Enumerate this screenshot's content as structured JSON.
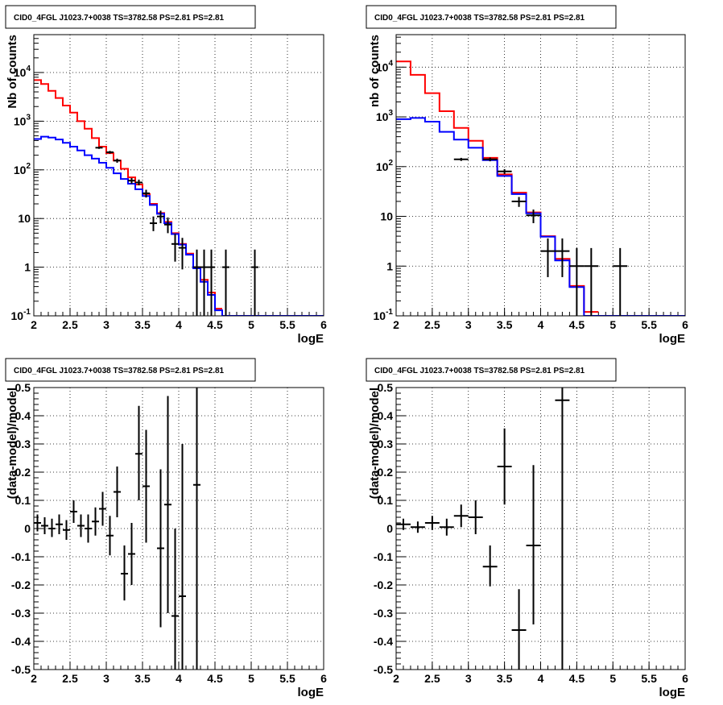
{
  "chart_data": [
    {
      "type": "line",
      "title": "CID0_4FGL J1023.7+0038 TS=3782.58 PS=2.81 PS=2.81",
      "xlabel": "logE",
      "ylabel": "Nb of counts",
      "xlim": [
        2,
        6
      ],
      "ylim": [
        0.1,
        60000
      ],
      "yscale": "log",
      "grid": true,
      "xticks": [
        "2",
        "2.5",
        "3",
        "3.5",
        "4",
        "4.5",
        "5",
        "5.5",
        "6"
      ],
      "yticks": [
        "10^-1",
        "1",
        "10",
        "10^2",
        "10^3",
        "10^4"
      ],
      "series": [
        {
          "role": "model-total",
          "color": "#ff0000",
          "edges": [
            2,
            2.1,
            2.2,
            2.3,
            2.4,
            2.5,
            2.6,
            2.7,
            2.8,
            2.9,
            3.0,
            3.1,
            3.2,
            3.3,
            3.4,
            3.5,
            3.6,
            3.7,
            3.8,
            3.9,
            4.0,
            4.1,
            4.2,
            4.3,
            4.4,
            4.5,
            4.6
          ],
          "values": [
            7000,
            5800,
            4200,
            3000,
            2100,
            1500,
            1000,
            700,
            450,
            300,
            220,
            155,
            105,
            70,
            50,
            32,
            20,
            13,
            8.5,
            5,
            3,
            1.9,
            1,
            0.55,
            0.3,
            0.14
          ]
        },
        {
          "role": "model-component",
          "color": "#0000ff",
          "edges": [
            2,
            2.1,
            2.2,
            2.3,
            2.4,
            2.5,
            2.6,
            2.7,
            2.8,
            2.9,
            3.0,
            3.1,
            3.2,
            3.3,
            3.4,
            3.5,
            3.6,
            3.7,
            3.8,
            3.9,
            4.0,
            4.1,
            4.2,
            4.3,
            4.4,
            4.5,
            4.6,
            6.0
          ],
          "values": [
            430,
            480,
            460,
            420,
            360,
            300,
            250,
            200,
            170,
            140,
            110,
            85,
            65,
            52,
            40,
            29,
            19,
            12.5,
            8,
            4.8,
            2.9,
            1.8,
            0.95,
            0.5,
            0.27,
            0.13,
            0.1
          ]
        },
        {
          "role": "data",
          "color": "#000000",
          "points": [
            {
              "x": 2.9,
              "y": 285,
              "xerr": 0.05,
              "ylo": 270,
              "yhi": 300
            },
            {
              "x": 3.05,
              "y": 230,
              "xerr": 0.05,
              "ylo": 215,
              "yhi": 245
            },
            {
              "x": 3.15,
              "y": 155,
              "xerr": 0.05,
              "ylo": 140,
              "yhi": 170
            },
            {
              "x": 3.35,
              "y": 60,
              "xerr": 0.05,
              "ylo": 52,
              "yhi": 68
            },
            {
              "x": 3.45,
              "y": 55,
              "xerr": 0.05,
              "ylo": 48,
              "yhi": 63
            },
            {
              "x": 3.55,
              "y": 33,
              "xerr": 0.05,
              "ylo": 27,
              "yhi": 39
            },
            {
              "x": 3.65,
              "y": 8,
              "xerr": 0.05,
              "ylo": 5.5,
              "yhi": 11
            },
            {
              "x": 3.75,
              "y": 11,
              "xerr": 0.05,
              "ylo": 8,
              "yhi": 14.5
            },
            {
              "x": 3.85,
              "y": 7.5,
              "xerr": 0.05,
              "ylo": 5,
              "yhi": 10.5
            },
            {
              "x": 3.95,
              "y": 3,
              "xerr": 0.05,
              "ylo": 1.3,
              "yhi": 4.8
            },
            {
              "x": 4.05,
              "y": 2.5,
              "xerr": 0.05,
              "ylo": 0.9,
              "yhi": 4
            },
            {
              "x": 4.25,
              "y": 1,
              "xerr": 0.05,
              "ylo": 0.1,
              "yhi": 2.3
            },
            {
              "x": 4.35,
              "y": 1,
              "xerr": 0.05,
              "ylo": 0.1,
              "yhi": 2.3
            },
            {
              "x": 4.45,
              "y": 1,
              "xerr": 0.05,
              "ylo": 0.1,
              "yhi": 2.3
            },
            {
              "x": 4.65,
              "y": 1,
              "xerr": 0.05,
              "ylo": 0.1,
              "yhi": 2.3
            },
            {
              "x": 5.05,
              "y": 1,
              "xerr": 0.05,
              "ylo": 0.1,
              "yhi": 2.3
            }
          ]
        }
      ]
    },
    {
      "type": "line",
      "title": "CID0_4FGL J1023.7+0038 TS=3782.58 PS=2.81 PS=2.81",
      "xlabel": "logE",
      "ylabel": "nb of counts",
      "xlim": [
        2,
        6
      ],
      "ylim": [
        0.1,
        45000
      ],
      "yscale": "log",
      "grid": true,
      "xticks": [
        "2",
        "2.5",
        "3",
        "3.5",
        "4",
        "4.5",
        "5",
        "5.5",
        "6"
      ],
      "yticks": [
        "10^-1",
        "1",
        "10",
        "10^2",
        "10^3",
        "10^4"
      ],
      "series": [
        {
          "role": "model-total",
          "color": "#ff0000",
          "edges": [
            2,
            2.2,
            2.4,
            2.6,
            2.8,
            3.0,
            3.2,
            3.4,
            3.6,
            3.8,
            4.0,
            4.2,
            4.4,
            4.6,
            4.8
          ],
          "values": [
            13000,
            7000,
            3000,
            1300,
            600,
            330,
            150,
            70,
            30,
            12,
            4,
            1.4,
            0.4,
            0.12
          ]
        },
        {
          "role": "model-component",
          "color": "#0000ff",
          "edges": [
            2,
            2.2,
            2.4,
            2.6,
            2.8,
            3.0,
            3.2,
            3.4,
            3.6,
            3.8,
            4.0,
            4.2,
            4.4,
            4.6,
            4.8,
            6.0
          ],
          "values": [
            900,
            950,
            800,
            500,
            350,
            240,
            135,
            65,
            28,
            11.5,
            3.9,
            1.3,
            0.38,
            0.1,
            0.1
          ]
        },
        {
          "role": "data",
          "color": "#000000",
          "points": [
            {
              "x": 2.9,
              "y": 140,
              "xerr": 0.1,
              "ylo": 130,
              "yhi": 150
            },
            {
              "x": 3.3,
              "y": 140,
              "xerr": 0.1,
              "ylo": 128,
              "yhi": 152
            },
            {
              "x": 3.5,
              "y": 80,
              "xerr": 0.1,
              "ylo": 71,
              "yhi": 89
            },
            {
              "x": 3.7,
              "y": 20,
              "xerr": 0.1,
              "ylo": 15.5,
              "yhi": 24.5
            },
            {
              "x": 3.9,
              "y": 10.5,
              "xerr": 0.1,
              "ylo": 7.3,
              "yhi": 13.7
            },
            {
              "x": 4.1,
              "y": 2,
              "xerr": 0.1,
              "ylo": 0.6,
              "yhi": 3.6
            },
            {
              "x": 4.3,
              "y": 2,
              "xerr": 0.1,
              "ylo": 0.6,
              "yhi": 3.6
            },
            {
              "x": 4.5,
              "y": 1,
              "xerr": 0.1,
              "ylo": 0.1,
              "yhi": 2.3
            },
            {
              "x": 4.7,
              "y": 1,
              "xerr": 0.1,
              "ylo": 0.1,
              "yhi": 2.3
            },
            {
              "x": 5.1,
              "y": 1,
              "xerr": 0.1,
              "ylo": 0.1,
              "yhi": 2.3
            }
          ]
        }
      ]
    },
    {
      "type": "scatter",
      "title": "CID0_4FGL J1023.7+0038 TS=3782.58 PS=2.81 PS=2.81",
      "xlabel": "logE",
      "ylabel": "(data-model)/model",
      "xlim": [
        2,
        6
      ],
      "ylim": [
        -0.5,
        0.5
      ],
      "grid": true,
      "xticks": [
        "2",
        "2.5",
        "3",
        "3.5",
        "4",
        "4.5",
        "5",
        "5.5",
        "6"
      ],
      "yticks": [
        "-0.5",
        "-0.4",
        "-0.3",
        "-0.2",
        "-0.1",
        "0",
        "0.1",
        "0.2",
        "0.3",
        "0.4",
        "0.5"
      ],
      "series": [
        {
          "role": "residuals",
          "color": "#000000",
          "points": [
            {
              "x": 2.05,
              "y": 0.02,
              "xerr": 0.05,
              "ylo": -0.01,
              "yhi": 0.05
            },
            {
              "x": 2.15,
              "y": 0.01,
              "xerr": 0.05,
              "ylo": -0.02,
              "yhi": 0.04
            },
            {
              "x": 2.25,
              "y": 0.0,
              "xerr": 0.05,
              "ylo": -0.03,
              "yhi": 0.035
            },
            {
              "x": 2.35,
              "y": 0.015,
              "xerr": 0.05,
              "ylo": -0.02,
              "yhi": 0.05
            },
            {
              "x": 2.45,
              "y": -0.005,
              "xerr": 0.05,
              "ylo": -0.04,
              "yhi": 0.03
            },
            {
              "x": 2.55,
              "y": 0.06,
              "xerr": 0.05,
              "ylo": 0.02,
              "yhi": 0.1
            },
            {
              "x": 2.65,
              "y": 0.01,
              "xerr": 0.05,
              "ylo": -0.03,
              "yhi": 0.05
            },
            {
              "x": 2.75,
              "y": 0.0,
              "xerr": 0.05,
              "ylo": -0.05,
              "yhi": 0.05
            },
            {
              "x": 2.85,
              "y": 0.025,
              "xerr": 0.05,
              "ylo": -0.025,
              "yhi": 0.075
            },
            {
              "x": 2.95,
              "y": 0.07,
              "xerr": 0.05,
              "ylo": 0.01,
              "yhi": 0.13
            },
            {
              "x": 3.05,
              "y": -0.025,
              "xerr": 0.05,
              "ylo": -0.095,
              "yhi": 0.045
            },
            {
              "x": 3.15,
              "y": 0.13,
              "xerr": 0.05,
              "ylo": 0.04,
              "yhi": 0.22
            },
            {
              "x": 3.25,
              "y": -0.16,
              "xerr": 0.05,
              "ylo": -0.255,
              "yhi": -0.06
            },
            {
              "x": 3.35,
              "y": -0.09,
              "xerr": 0.05,
              "ylo": -0.2,
              "yhi": 0.02
            },
            {
              "x": 3.45,
              "y": 0.265,
              "xerr": 0.05,
              "ylo": 0.1,
              "yhi": 0.435
            },
            {
              "x": 3.55,
              "y": 0.15,
              "xerr": 0.05,
              "ylo": -0.05,
              "yhi": 0.35
            },
            {
              "x": 3.75,
              "y": -0.07,
              "xerr": 0.05,
              "ylo": -0.35,
              "yhi": 0.21
            },
            {
              "x": 3.85,
              "y": 0.085,
              "xerr": 0.05,
              "ylo": -0.3,
              "yhi": 0.47
            },
            {
              "x": 3.95,
              "y": -0.31,
              "xerr": 0.05,
              "ylo": -0.5,
              "yhi": 0.0
            },
            {
              "x": 4.05,
              "y": -0.24,
              "xerr": 0.05,
              "ylo": -0.5,
              "yhi": 0.3
            },
            {
              "x": 4.25,
              "y": 0.155,
              "xerr": 0.05,
              "ylo": -0.5,
              "yhi": 0.5
            }
          ]
        }
      ]
    },
    {
      "type": "scatter",
      "title": "CID0_4FGL J1023.7+0038 TS=3782.58 PS=2.81 PS=2.81",
      "xlabel": "logE",
      "ylabel": "(data-model)/model",
      "xlim": [
        2,
        6
      ],
      "ylim": [
        -0.5,
        0.5
      ],
      "grid": true,
      "xticks": [
        "2",
        "2.5",
        "3",
        "3.5",
        "4",
        "4.5",
        "5",
        "5.5",
        "6"
      ],
      "yticks": [
        "-0.5",
        "-0.4",
        "-0.3",
        "-0.2",
        "-0.1",
        "0",
        "0.1",
        "0.2",
        "0.3",
        "0.4",
        "0.5"
      ],
      "series": [
        {
          "role": "residuals",
          "color": "#000000",
          "points": [
            {
              "x": 2.1,
              "y": 0.015,
              "xerr": 0.1,
              "ylo": -0.005,
              "yhi": 0.035
            },
            {
              "x": 2.3,
              "y": 0.005,
              "xerr": 0.1,
              "ylo": -0.015,
              "yhi": 0.025
            },
            {
              "x": 2.5,
              "y": 0.02,
              "xerr": 0.1,
              "ylo": -0.005,
              "yhi": 0.045
            },
            {
              "x": 2.7,
              "y": 0.005,
              "xerr": 0.1,
              "ylo": -0.025,
              "yhi": 0.035
            },
            {
              "x": 2.9,
              "y": 0.045,
              "xerr": 0.1,
              "ylo": 0.005,
              "yhi": 0.085
            },
            {
              "x": 3.1,
              "y": 0.04,
              "xerr": 0.1,
              "ylo": -0.02,
              "yhi": 0.1
            },
            {
              "x": 3.3,
              "y": -0.135,
              "xerr": 0.1,
              "ylo": -0.205,
              "yhi": -0.06
            },
            {
              "x": 3.5,
              "y": 0.22,
              "xerr": 0.1,
              "ylo": 0.085,
              "yhi": 0.355
            },
            {
              "x": 3.7,
              "y": -0.36,
              "xerr": 0.1,
              "ylo": -0.5,
              "yhi": -0.215
            },
            {
              "x": 3.9,
              "y": -0.06,
              "xerr": 0.1,
              "ylo": -0.34,
              "yhi": 0.225
            },
            {
              "x": 4.3,
              "y": 0.455,
              "xerr": 0.1,
              "ylo": -0.5,
              "yhi": 0.5
            }
          ]
        }
      ]
    }
  ]
}
